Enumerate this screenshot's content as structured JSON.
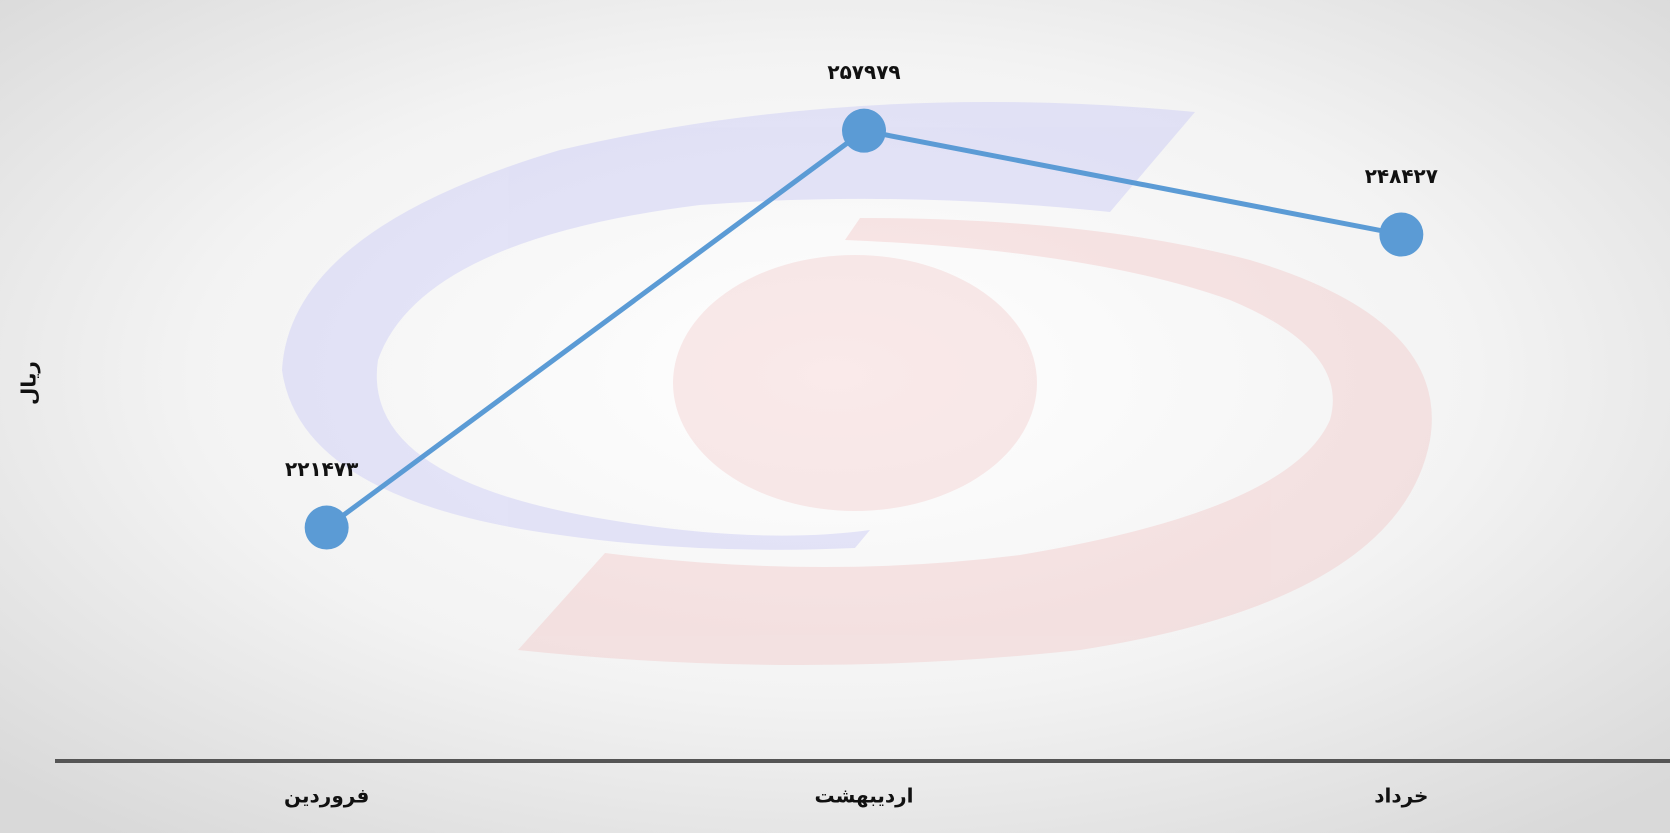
{
  "chart_data": {
    "type": "line",
    "y_label": "ریال",
    "categories": [
      "فروردین",
      "اردیبهشت",
      "خرداد"
    ],
    "values": [
      221473,
      257979,
      248427
    ],
    "value_labels": [
      "۲۲۱۴۷۳",
      "۲۵۷۹۷۹",
      "۲۴۸۴۲۷"
    ],
    "color": "#5b9bd5",
    "ylim": [
      200000,
      270000
    ]
  }
}
